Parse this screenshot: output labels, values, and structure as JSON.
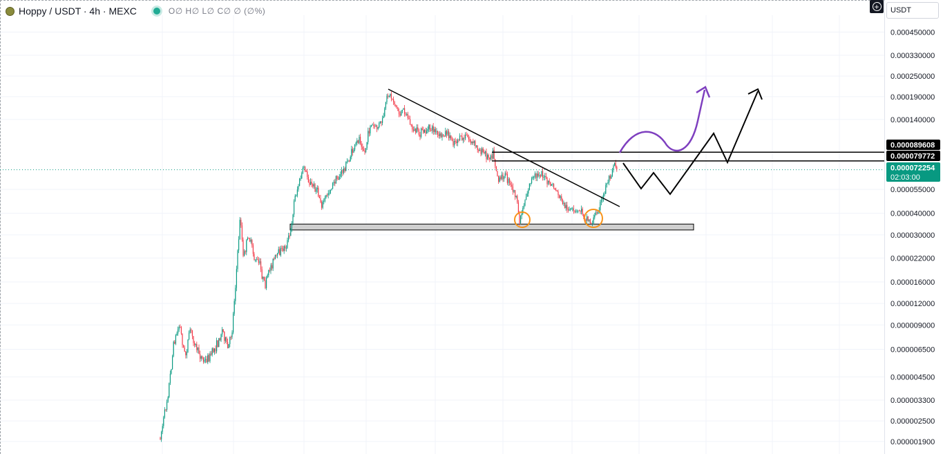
{
  "legend": {
    "symbol": "Hoppy / USDT · 4h · MEXC",
    "ohlc": "O∅ H∅ L∅ C∅ ∅ (∅%)"
  },
  "toolbar": {
    "currency": "USDT"
  },
  "chart_data": {
    "type": "candlestick",
    "title": "Hoppy / USDT · 4h · MEXC",
    "y_scale": "log",
    "y_ticks": [
      "0.000450000",
      "0.000330000",
      "0.000250000",
      "0.000190000",
      "0.000140000",
      "0.000055000",
      "0.000040000",
      "0.000030000",
      "0.000022000",
      "0.000016000",
      "0.000012000",
      "0.000009000",
      "0.000006500",
      "0.000004500",
      "0.000003300",
      "0.000002500",
      "0.000001900"
    ],
    "price_labels": [
      {
        "value": "0.000089608",
        "role": "horizontal-line",
        "color": "#000000"
      },
      {
        "value": "0.000079772",
        "role": "horizontal-line",
        "color": "#000000"
      },
      {
        "value": "0.000072254",
        "role": "last-price",
        "color": "#089981",
        "countdown": "02:03:00"
      }
    ],
    "ylim": [
      1.8e-06,
      0.00055
    ],
    "series_summary": {
      "start_price": 2e-06,
      "first_peak": 1.2e-05,
      "consolidation_low": 1.4e-05,
      "all_time_high": 0.00021,
      "support_low": 3.4e-05,
      "last_price": 7.2254e-05
    },
    "drawings": [
      {
        "type": "trendline",
        "label": "descending resistance"
      },
      {
        "type": "rectangle",
        "label": "support zone",
        "price_range": [
          3e-05,
          3.4e-05
        ]
      },
      {
        "type": "circle",
        "label": "support test 1"
      },
      {
        "type": "circle",
        "label": "support test 2"
      },
      {
        "type": "path",
        "color": "#7e3fbf",
        "label": "bullish projection"
      },
      {
        "type": "path",
        "color": "#000000",
        "label": "alternative projection"
      }
    ],
    "colors": {
      "up": "#089981",
      "down": "#f23645",
      "background": "#ffffff",
      "grid": "#f0f3fa"
    }
  }
}
